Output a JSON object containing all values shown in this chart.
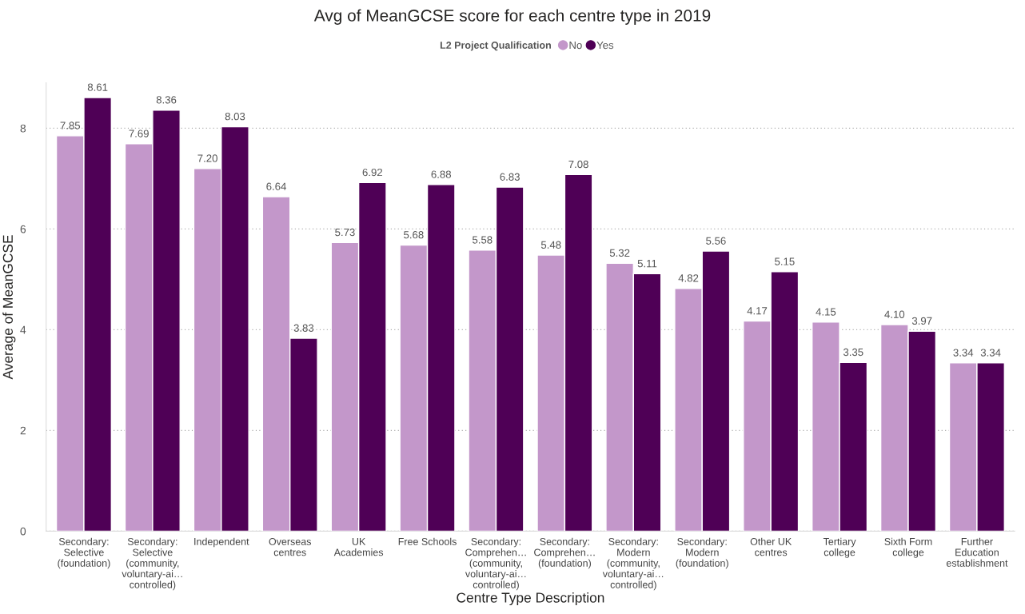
{
  "chart_data": {
    "type": "bar",
    "title": "Avg of MeanGCSE score for each centre type in 2019",
    "xlabel": "Centre Type Description",
    "ylabel": "Average of MeanGCSE",
    "legend_title": "L2 Project Qualification",
    "categories": [
      "Secondary:\nSelective\n(foundation)",
      "Secondary:\nSelective\n(community,\nvoluntary-ai…\ncontrolled)",
      "Independent",
      "Overseas\ncentres",
      "UK\nAcademies",
      "Free Schools",
      "Secondary:\nComprehen…\n(community,\nvoluntary-ai…\ncontrolled)",
      "Secondary:\nComprehen…\n(foundation)",
      "Secondary:\nModern\n(community,\nvoluntary-ai…\ncontrolled)",
      "Secondary:\nModern\n(foundation)",
      "Other UK\ncentres",
      "Tertiary\ncollege",
      "Sixth Form\ncollege",
      "Further\nEducation\nestablishment"
    ],
    "series": [
      {
        "name": "No",
        "color": "#c397ca",
        "values": [
          7.85,
          7.69,
          7.2,
          6.64,
          5.73,
          5.68,
          5.58,
          5.48,
          5.32,
          4.82,
          4.17,
          4.15,
          4.1,
          3.34
        ],
        "value_labels": [
          "7.85",
          "7.69",
          "7.20",
          "6.64",
          "5.73",
          "5.68",
          "5.58",
          "5.48",
          "5.32",
          "4.82",
          "4.17",
          "4.15",
          "4.10",
          "3.34"
        ]
      },
      {
        "name": "Yes",
        "color": "#4f0056",
        "values": [
          8.61,
          8.36,
          8.03,
          3.83,
          6.92,
          6.88,
          6.83,
          7.08,
          5.11,
          5.56,
          5.15,
          3.35,
          3.97,
          3.34
        ],
        "value_labels": [
          "8.61",
          "8.36",
          "8.03",
          "3.83",
          "6.92",
          "6.88",
          "6.83",
          "7.08",
          "5.11",
          "5.56",
          "5.15",
          "3.35",
          "3.97",
          "3.34"
        ]
      }
    ],
    "ylim": [
      0,
      8.9
    ],
    "yticks": [
      0,
      2,
      4,
      6,
      8
    ],
    "grid": "y",
    "legend": "top"
  }
}
